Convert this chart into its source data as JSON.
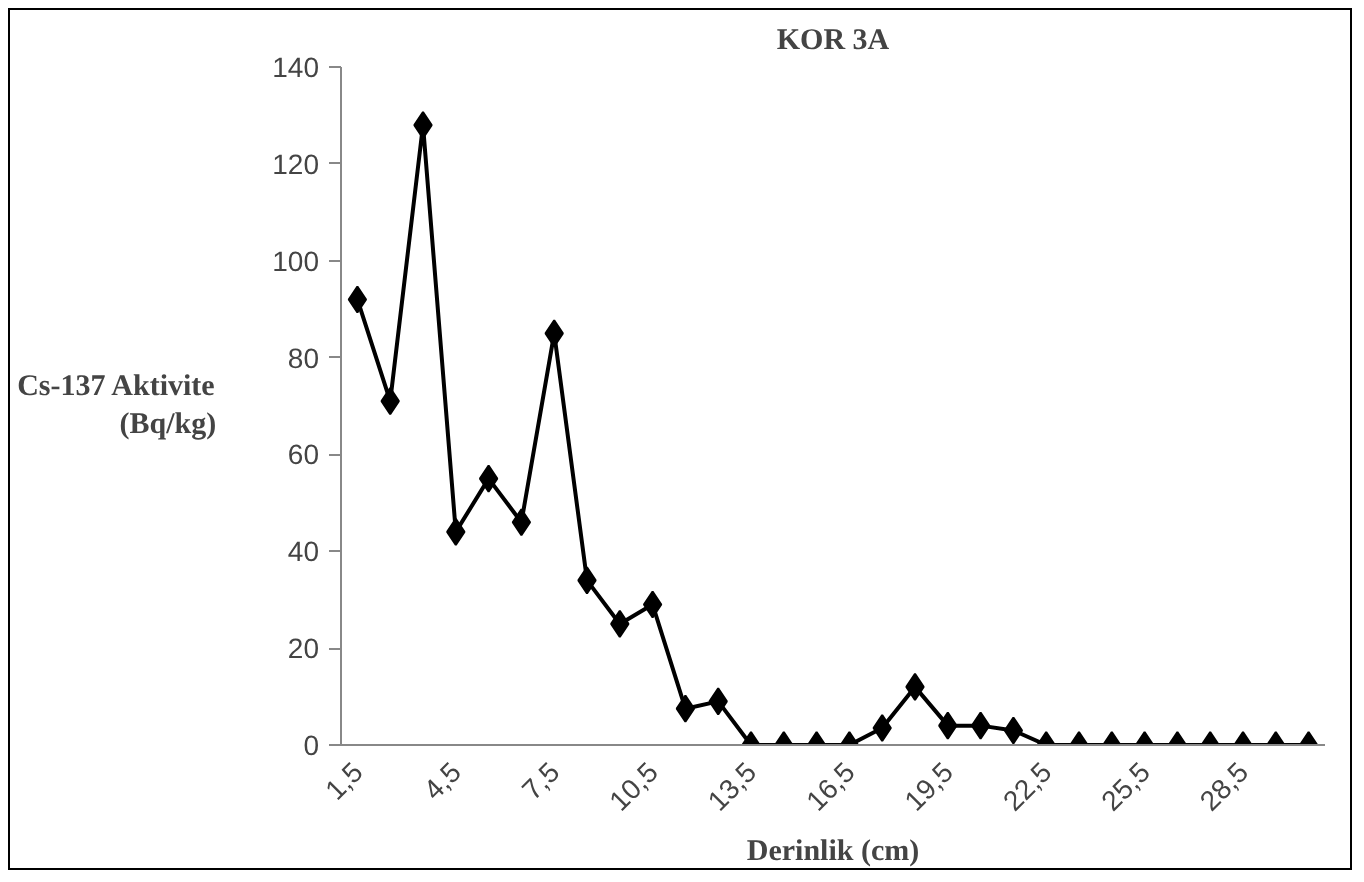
{
  "chart_data": {
    "type": "line",
    "title": "KOR 3A",
    "xlabel": "Derinlik (cm)",
    "ylabel": "Cs-137 Aktivite\n(Bq/kg)",
    "categories": [
      "1,5",
      null,
      null,
      "4,5",
      null,
      null,
      "7,5",
      null,
      null,
      "10,5",
      null,
      null,
      "13,5",
      null,
      null,
      "16,5",
      null,
      null,
      "19,5",
      null,
      null,
      "22,5",
      null,
      null,
      "25,5",
      null,
      null,
      "28,5",
      null,
      null
    ],
    "series": [
      {
        "color": "#000000",
        "values": [
          92,
          71,
          128,
          44,
          55,
          46,
          85,
          34,
          25,
          29,
          7.5,
          9,
          0,
          0,
          0,
          0,
          3.5,
          12,
          4,
          4,
          3,
          0,
          0,
          0,
          0,
          0,
          0,
          0,
          0,
          0
        ]
      }
    ],
    "ylim": [
      0,
      140
    ],
    "yticks": [
      0,
      20,
      40,
      60,
      80,
      100,
      120,
      140
    ],
    "grid": false,
    "marker": "diamond",
    "line_style": "solid"
  }
}
